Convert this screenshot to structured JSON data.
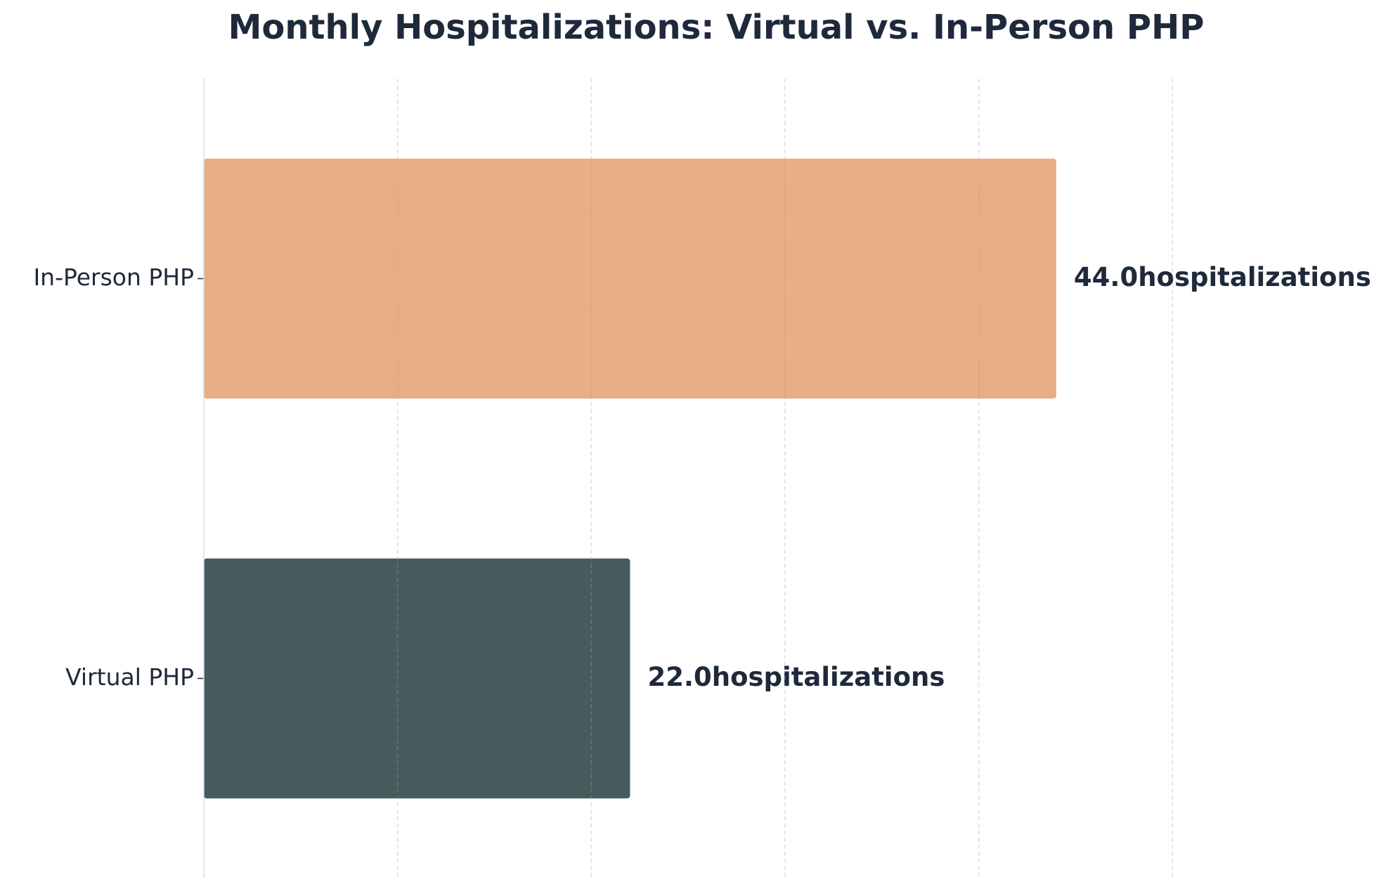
{
  "chart_data": {
    "type": "barh",
    "title": "Monthly Hospitalizations: Virtual vs. In-Person PHP",
    "categories": [
      "In-Person PHP",
      "Virtual PHP"
    ],
    "values": [
      44,
      22
    ],
    "value_labels": [
      "44.0hospitalizations",
      "22.0hospitalizations"
    ],
    "colors": [
      "#e8ae86",
      "#465c5c"
    ],
    "xlim": [
      0,
      60
    ],
    "xticks": [
      0,
      10,
      20,
      30,
      40,
      50
    ],
    "grid": true
  }
}
